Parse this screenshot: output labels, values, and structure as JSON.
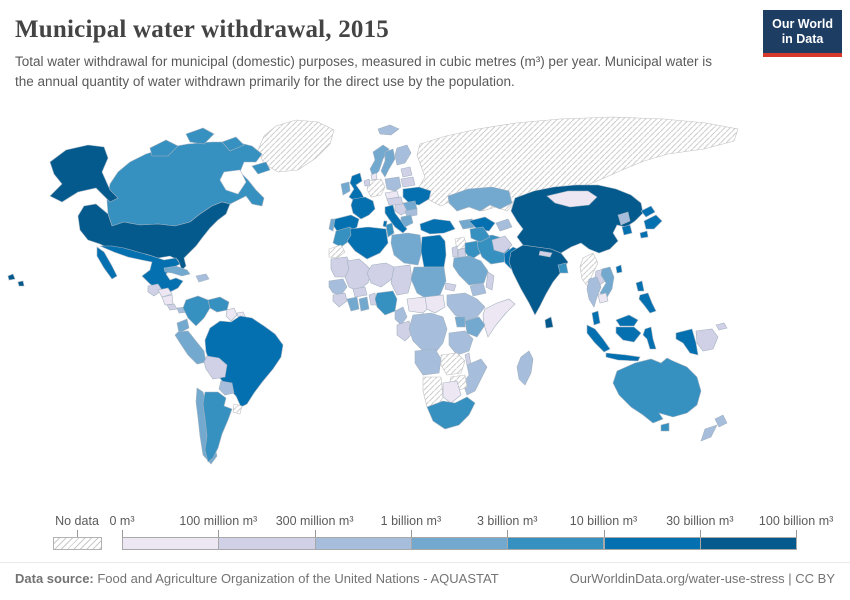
{
  "header": {
    "title": "Municipal water withdrawal, 2015",
    "subtitle": "Total water withdrawal for municipal (domestic) purposes, measured in cubic metres (m³) per year. Municipal water is the annual quantity of water withdrawn primarily for the direct use by the population.",
    "logo": {
      "line1": "Our World",
      "line2": "in Data",
      "bg_color": "#1d3d63",
      "accent_color": "#d6382c"
    }
  },
  "legend": {
    "no_data_label": "No data",
    "tick_labels": [
      "0 m³",
      "100 million m³",
      "300 million m³",
      "1 billion m³",
      "3 billion m³",
      "10 billion m³",
      "30 billion m³",
      "100 billion m³"
    ],
    "bin_colors": [
      "#ece7f2",
      "#d0d1e6",
      "#a6bddb",
      "#74a9cf",
      "#3690c0",
      "#0570b0",
      "#045a8d"
    ]
  },
  "footer": {
    "source_label": "Data source:",
    "source_text": " Food and Agriculture Organization of the United Nations - AQUASTAT",
    "url_text": "OurWorldinData.org/water-use-stress | CC BY"
  },
  "chart_data": {
    "type": "choropleth",
    "title": "Municipal water withdrawal, 2015",
    "year": 2015,
    "unit": "cubic metres (m³) per year",
    "no_data_style": "diagonal-hatch",
    "bins": [
      {
        "range": "0–100 million m³",
        "color": "#ece7f2"
      },
      {
        "range": "100–300 million m³",
        "color": "#d0d1e6"
      },
      {
        "range": "300 million–1 billion m³",
        "color": "#a6bddb"
      },
      {
        "range": "1–3 billion m³",
        "color": "#74a9cf"
      },
      {
        "range": "3–10 billion m³",
        "color": "#3690c0"
      },
      {
        "range": "10–30 billion m³",
        "color": "#0570b0"
      },
      {
        "range": "30–100 billion m³",
        "color": "#045a8d"
      }
    ],
    "countries": {
      "Russia": "no_data",
      "Greenland": "no_data",
      "Canada": 4,
      "United States": 6,
      "Mexico": 5,
      "Guatemala": 1,
      "Honduras": 0,
      "Nicaragua": 0,
      "Costa Rica": 1,
      "Panama": 2,
      "Cuba": 3,
      "Dominican Republic": 2,
      "Colombia": 4,
      "Venezuela": 4,
      "Guyana": 0,
      "Suriname": 0,
      "Ecuador": 3,
      "Peru": 3,
      "Brazil": 5,
      "Bolivia": 1,
      "Paraguay": 2,
      "Chile": 3,
      "Argentina": 4,
      "Uruguay": "no_data",
      "Iceland": 2,
      "Ireland": 3,
      "United Kingdom": 5,
      "Norway": 3,
      "Sweden": 3,
      "Finland": 2,
      "Denmark": 0,
      "Germany": "no_data",
      "Netherlands": 1,
      "Poland": 2,
      "Latvia": 1,
      "Belarus": 1,
      "Ukraine": 5,
      "Czechia": 0,
      "Hungary": 1,
      "France": 5,
      "Spain": 5,
      "Portugal": 3,
      "Italy": 5,
      "Serbia": 1,
      "Romania": 3,
      "Bulgaria": 2,
      "Greece": 3,
      "Turkey": 5,
      "Azerbaijan": 3,
      "Syria": "no_data",
      "Israel": 1,
      "Jordan": 1,
      "Iraq": 4,
      "Saudi Arabia": 3,
      "Yemen": 2,
      "Oman": 1,
      "Iran": 4,
      "Kazakhstan": 3,
      "Uzbekistan": 5,
      "Turkmenistan": 4,
      "Kyrgyzstan": 2,
      "Afghanistan": 1,
      "Pakistan": 5,
      "India": 6,
      "Nepal": 1,
      "Bangladesh": 4,
      "Sri Lanka": 6,
      "China": 6,
      "Mongolia": 0,
      "North Korea": 2,
      "South Korea": 5,
      "Japan": 5,
      "Taiwan": 5,
      "Myanmar": "no_data",
      "Laos": 1,
      "Thailand": 2,
      "Vietnam": 3,
      "Cambodia": 0,
      "Malaysia": 5,
      "Indonesia": 5,
      "Papua New Guinea": 1,
      "Philippines": 5,
      "Morocco": 4,
      "Western Sahara": "no_data",
      "Algeria": 5,
      "Tunisia": 4,
      "Libya": 3,
      "Egypt": 5,
      "Mauritania": 1,
      "Mali": 1,
      "Niger": 1,
      "Chad": 1,
      "Sudan": 3,
      "Eritrea": 1,
      "Senegal": 2,
      "Guinea": 1,
      "Cote d'Ivoire": 3,
      "Ghana": 3,
      "Benin": 1,
      "Burkina Faso": 1,
      "Nigeria": 4,
      "Cameroon": 2,
      "Central African Republic": 0,
      "South Sudan": 0,
      "Ethiopia": 2,
      "Somalia": 0,
      "Kenya": 3,
      "Uganda": 3,
      "Congo": 1,
      "Democratic Republic of Congo": 2,
      "Tanzania": 2,
      "Angola": 2,
      "Zambia": "no_data",
      "Malawi": 1,
      "Mozambique": 2,
      "Zimbabwe": "no_data",
      "Namibia": "no_data",
      "Botswana": 0,
      "South Africa": 4,
      "Madagascar": 2,
      "Australia": 4,
      "New Zealand": 2
    }
  }
}
